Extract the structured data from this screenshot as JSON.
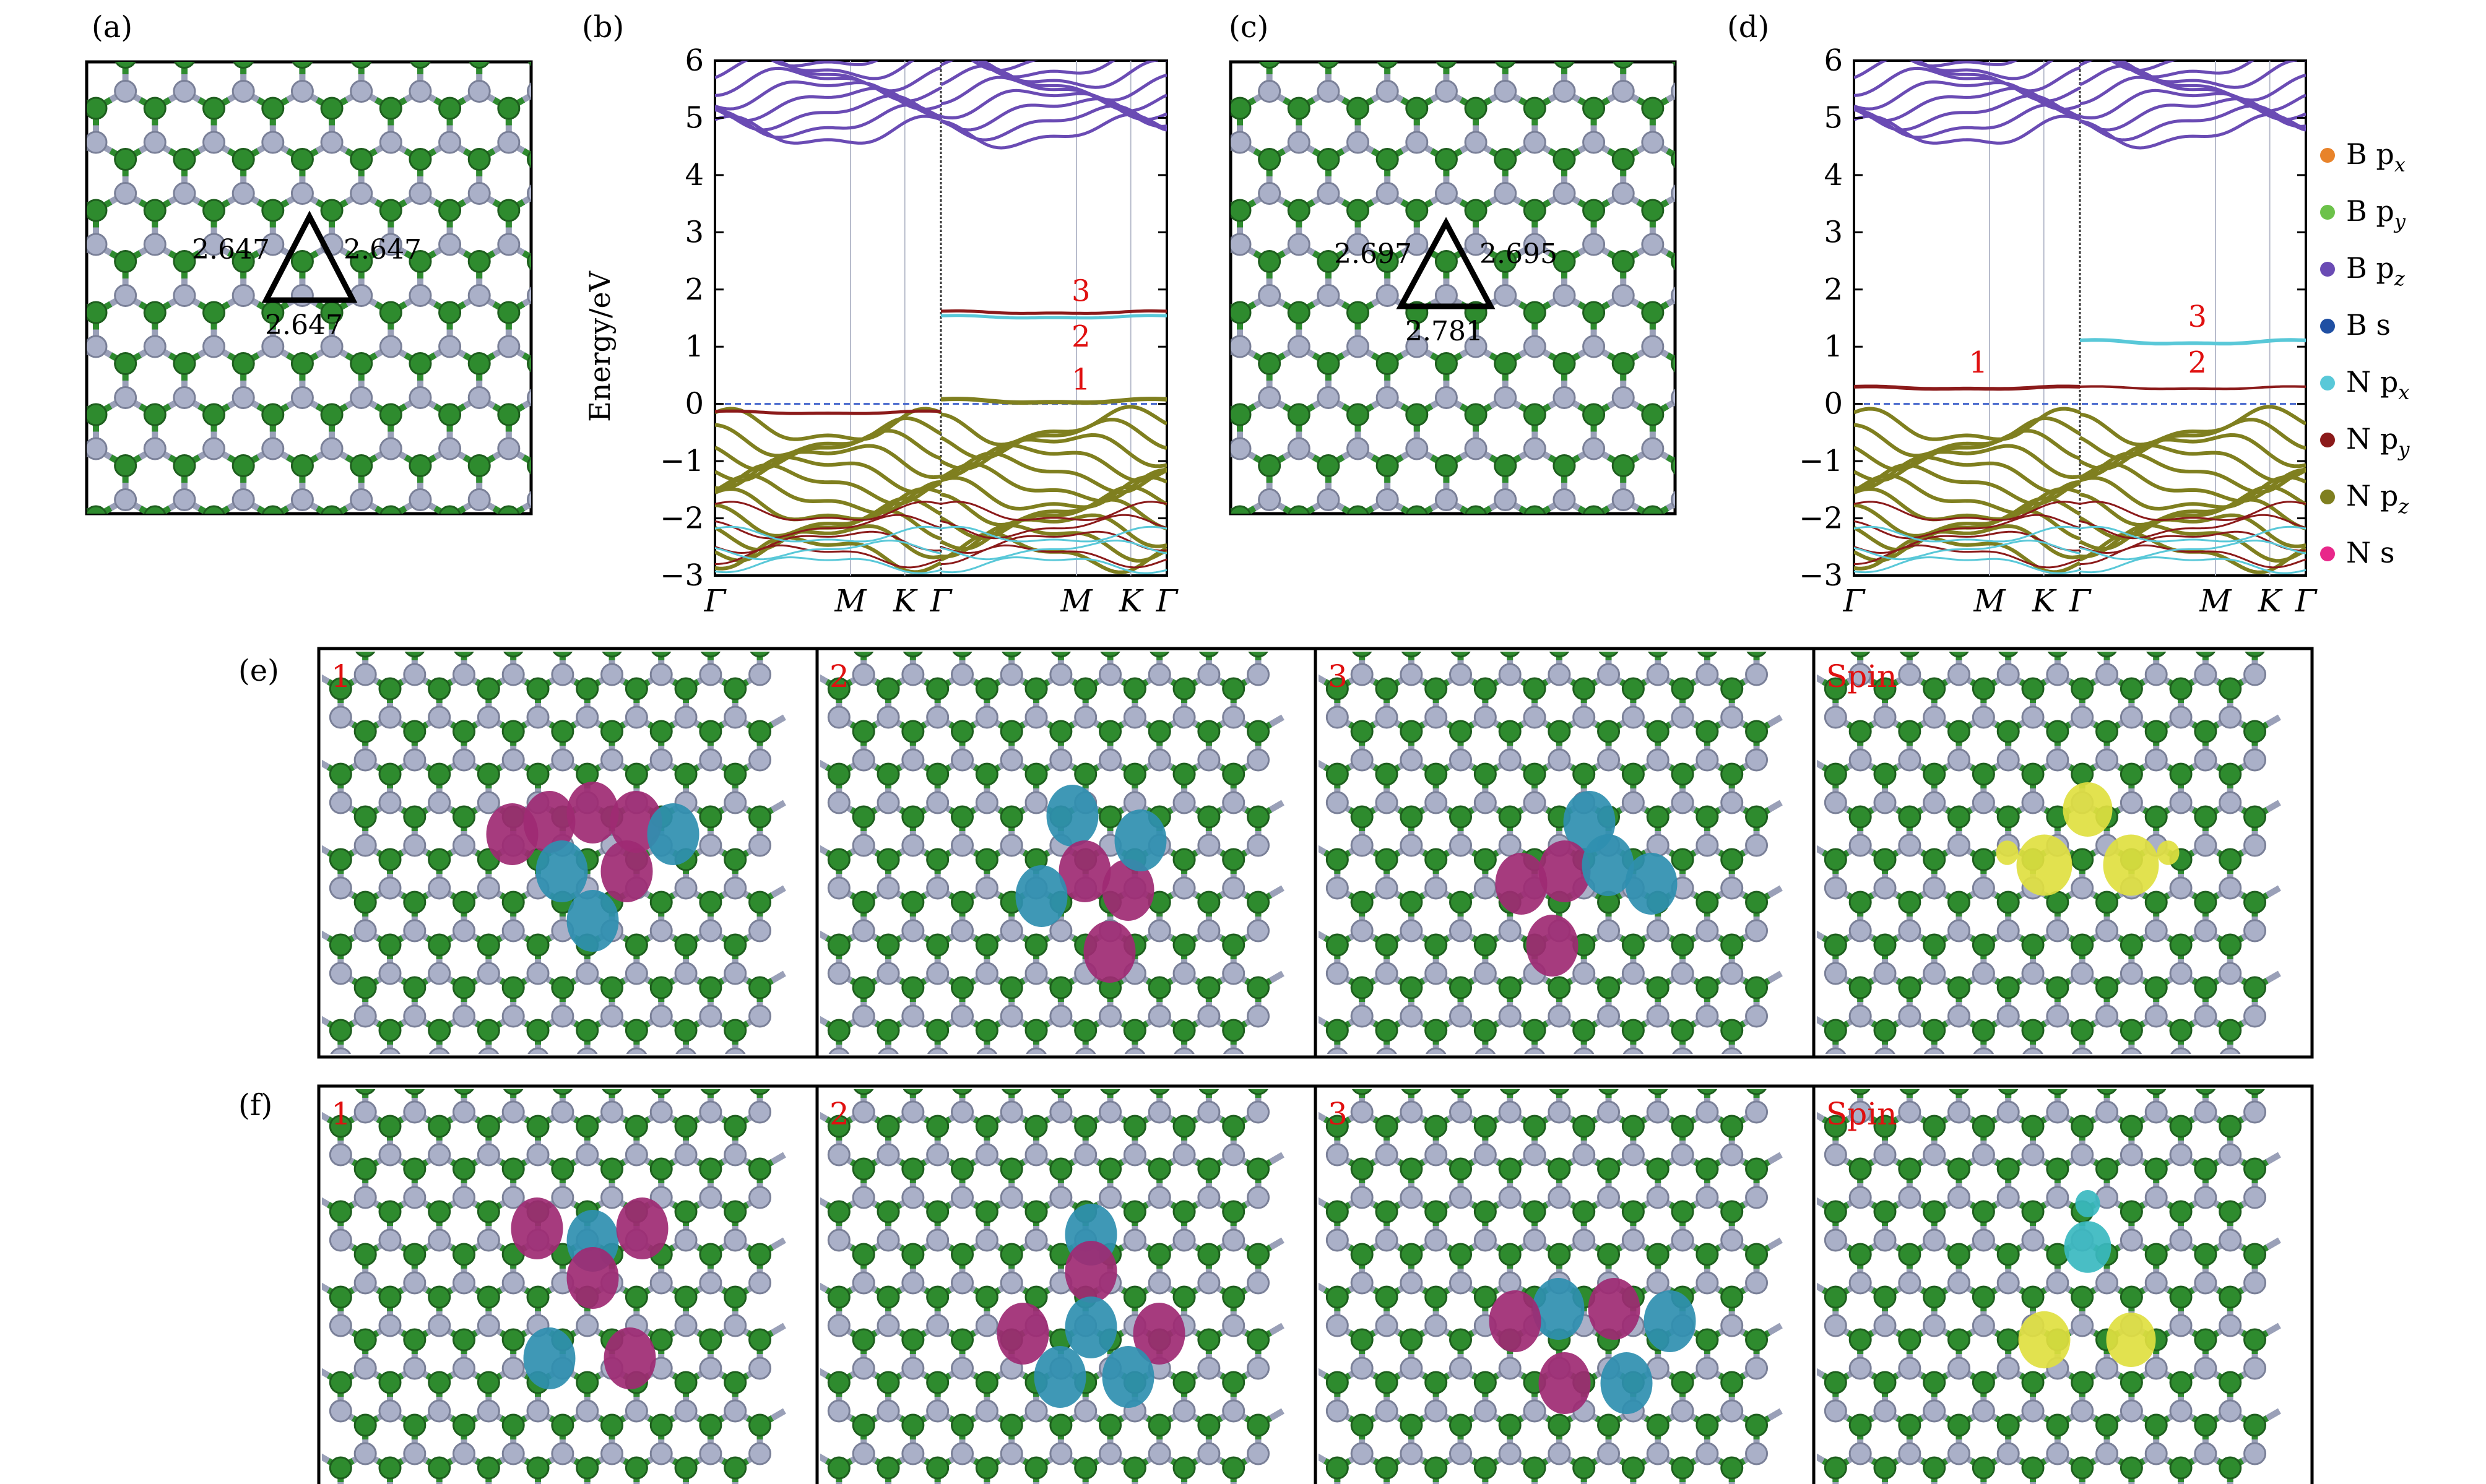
{
  "panel_labels": {
    "a": "(a)",
    "b": "(b)",
    "c": "(c)",
    "d": "(d)",
    "e": "(e)",
    "f": "(f)"
  },
  "bond_lengths_a": {
    "left": "2.647",
    "right": "2.647",
    "bottom": "2.647"
  },
  "bond_lengths_c": {
    "left": "2.697",
    "right": "2.695",
    "bottom": "2.781"
  },
  "band_labels_b": [
    "3",
    "2",
    "1"
  ],
  "band_labels_d": [
    "1",
    "3",
    "2"
  ],
  "orbital_labels": [
    "1",
    "2",
    "3",
    "Spin"
  ],
  "colors": {
    "B_px": "#e8832a",
    "B_py": "#6cc24a",
    "B_pz": "#6a4bb4",
    "B_s": "#1f4fa3",
    "N_px": "#59c8d8",
    "N_py": "#8b1a1a",
    "N_pz": "#7f7f1f",
    "N_s": "#e8278a",
    "boron_atom": "#2e8b2e",
    "nitrogen_atom": "#aab0c8",
    "lobe_magenta": "#9e2a73",
    "lobe_cyan": "#2f8fb0",
    "spin_yellow": "#e0e040",
    "spin_cyan": "#3ab8c0"
  },
  "chart_data": [
    {
      "type": "line",
      "panel": "(b)",
      "ylabel": "Energy/eV",
      "ylim": [
        -3,
        6
      ],
      "yticks": [
        "6",
        "5",
        "4",
        "3",
        "2",
        "1",
        "0",
        "−1",
        "−2",
        "−3"
      ],
      "xticks": [
        "Γ",
        "M",
        "K",
        "Γ",
        "M",
        "K",
        "Γ"
      ],
      "annotations": [
        "3",
        "2",
        "1"
      ]
    },
    {
      "type": "line",
      "panel": "(d)",
      "ylim": [
        -3,
        6
      ],
      "yticks": [
        "6",
        "5",
        "4",
        "3",
        "2",
        "1",
        "0",
        "−1",
        "−2",
        "−3"
      ],
      "xticks": [
        "Γ",
        "M",
        "K",
        "Γ",
        "M",
        "K",
        "Γ"
      ],
      "annotations": [
        "1",
        "3",
        "2"
      ],
      "legend": [
        {
          "name": "B px",
          "main": "B p",
          "sub": "x",
          "color": "#e8832a"
        },
        {
          "name": "B py",
          "main": "B p",
          "sub": "y",
          "color": "#6cc24a"
        },
        {
          "name": "B pz",
          "main": "B p",
          "sub": "z",
          "color": "#6a4bb4"
        },
        {
          "name": "B s",
          "main": "B s",
          "sub": "",
          "color": "#1f4fa3"
        },
        {
          "name": "N px",
          "main": "N p",
          "sub": "x",
          "color": "#59c8d8"
        },
        {
          "name": "N py",
          "main": "N p",
          "sub": "y",
          "color": "#8b1a1a"
        },
        {
          "name": "N pz",
          "main": "N p",
          "sub": "z",
          "color": "#7f7f1f"
        },
        {
          "name": "N s",
          "main": "N s",
          "sub": "",
          "color": "#e8278a"
        }
      ]
    }
  ]
}
